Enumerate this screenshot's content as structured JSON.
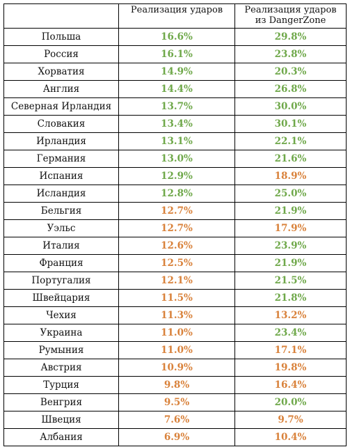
{
  "headers": {
    "country": "",
    "shot_rate": "Реализация ударов",
    "danger_zone_line1": "Реализация ударов",
    "danger_zone_line2": "из DangerZone"
  },
  "colors": {
    "green": "#6fa84a",
    "orange": "#d9823b"
  },
  "rows": [
    {
      "country": "Польша",
      "rate": "16.6%",
      "rate_color": "green",
      "dz": "29.8%",
      "dz_color": "green"
    },
    {
      "country": "Россия",
      "rate": "16.1%",
      "rate_color": "green",
      "dz": "23.8%",
      "dz_color": "green"
    },
    {
      "country": "Хорватия",
      "rate": "14.9%",
      "rate_color": "green",
      "dz": "20.3%",
      "dz_color": "green"
    },
    {
      "country": "Англия",
      "rate": "14.4%",
      "rate_color": "green",
      "dz": "26.8%",
      "dz_color": "green"
    },
    {
      "country": "Северная Ирландия",
      "rate": "13.7%",
      "rate_color": "green",
      "dz": "30.0%",
      "dz_color": "green"
    },
    {
      "country": "Словакия",
      "rate": "13.4%",
      "rate_color": "green",
      "dz": "30.1%",
      "dz_color": "green"
    },
    {
      "country": "Ирландия",
      "rate": "13.1%",
      "rate_color": "green",
      "dz": "22.1%",
      "dz_color": "green"
    },
    {
      "country": "Германия",
      "rate": "13.0%",
      "rate_color": "green",
      "dz": "21.6%",
      "dz_color": "green"
    },
    {
      "country": "Испания",
      "rate": "12.9%",
      "rate_color": "green",
      "dz": "18.9%",
      "dz_color": "orange"
    },
    {
      "country": "Исландия",
      "rate": "12.8%",
      "rate_color": "green",
      "dz": "25.0%",
      "dz_color": "green"
    },
    {
      "country": "Бельгия",
      "rate": "12.7%",
      "rate_color": "orange",
      "dz": "21.9%",
      "dz_color": "green"
    },
    {
      "country": "Уэльс",
      "rate": "12.7%",
      "rate_color": "orange",
      "dz": "17.9%",
      "dz_color": "orange"
    },
    {
      "country": "Италия",
      "rate": "12.6%",
      "rate_color": "orange",
      "dz": "23.9%",
      "dz_color": "green"
    },
    {
      "country": "Франция",
      "rate": "12.5%",
      "rate_color": "orange",
      "dz": "21.9%",
      "dz_color": "green"
    },
    {
      "country": "Португалия",
      "rate": "12.1%",
      "rate_color": "orange",
      "dz": "21.5%",
      "dz_color": "green"
    },
    {
      "country": "Швейцария",
      "rate": "11.5%",
      "rate_color": "orange",
      "dz": "21.8%",
      "dz_color": "green"
    },
    {
      "country": "Чехия",
      "rate": "11.3%",
      "rate_color": "orange",
      "dz": "13.2%",
      "dz_color": "orange"
    },
    {
      "country": "Украина",
      "rate": "11.0%",
      "rate_color": "orange",
      "dz": "23.4%",
      "dz_color": "green"
    },
    {
      "country": "Румыния",
      "rate": "11.0%",
      "rate_color": "orange",
      "dz": "17.1%",
      "dz_color": "orange"
    },
    {
      "country": "Австрия",
      "rate": "10.9%",
      "rate_color": "orange",
      "dz": "19.8%",
      "dz_color": "orange"
    },
    {
      "country": "Турция",
      "rate": "9.8%",
      "rate_color": "orange",
      "dz": "16.4%",
      "dz_color": "orange"
    },
    {
      "country": "Венгрия",
      "rate": "9.5%",
      "rate_color": "orange",
      "dz": "20.0%",
      "dz_color": "green"
    },
    {
      "country": "Швеция",
      "rate": "7.6%",
      "rate_color": "orange",
      "dz": "9.7%",
      "dz_color": "orange"
    },
    {
      "country": "Албания",
      "rate": "6.9%",
      "rate_color": "orange",
      "dz": "10.4%",
      "dz_color": "orange"
    }
  ]
}
